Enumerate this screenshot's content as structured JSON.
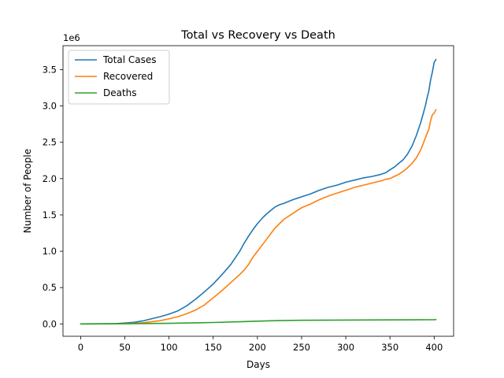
{
  "chart_data": {
    "type": "line",
    "title": "Total vs Recovery vs Death",
    "xlabel": "Days",
    "ylabel": "Number of People",
    "offset_text": "1e6",
    "xlim": [
      -20,
      422
    ],
    "ylim": [
      -170000,
      3830000
    ],
    "x_ticks": [
      0,
      50,
      100,
      150,
      200,
      250,
      300,
      350,
      400
    ],
    "x_tick_labels": [
      "0",
      "50",
      "100",
      "150",
      "200",
      "250",
      "300",
      "350",
      "400"
    ],
    "y_ticks": [
      0,
      500000,
      1000000,
      1500000,
      2000000,
      2500000,
      3000000,
      3500000
    ],
    "y_tick_labels": [
      "0.0",
      "0.5",
      "1.0",
      "1.5",
      "2.0",
      "2.5",
      "3.0",
      "3.5"
    ],
    "grid": false,
    "legend_position": "top-left",
    "series": [
      {
        "name": "Total Cases",
        "color": "#1f77b4",
        "x": [
          0,
          20,
          40,
          50,
          60,
          70,
          80,
          90,
          100,
          110,
          120,
          130,
          140,
          150,
          160,
          170,
          180,
          185,
          190,
          195,
          200,
          205,
          210,
          215,
          220,
          225,
          230,
          240,
          250,
          260,
          270,
          280,
          290,
          300,
          310,
          320,
          330,
          340,
          345,
          350,
          355,
          360,
          365,
          370,
          375,
          380,
          385,
          390,
          392,
          394,
          396,
          398,
          400,
          402
        ],
        "y": [
          0,
          1500,
          5000,
          12000,
          22000,
          40000,
          70000,
          100000,
          135000,
          180000,
          250000,
          340000,
          440000,
          550000,
          680000,
          820000,
          1000000,
          1110000,
          1210000,
          1300000,
          1380000,
          1450000,
          1510000,
          1560000,
          1610000,
          1640000,
          1660000,
          1710000,
          1750000,
          1790000,
          1840000,
          1880000,
          1910000,
          1950000,
          1980000,
          2010000,
          2030000,
          2060000,
          2080000,
          2120000,
          2160000,
          2210000,
          2260000,
          2340000,
          2450000,
          2600000,
          2780000,
          3000000,
          3110000,
          3210000,
          3360000,
          3470000,
          3600000,
          3640000
        ]
      },
      {
        "name": "Recovered",
        "color": "#ff7f0e",
        "x": [
          0,
          20,
          40,
          50,
          60,
          70,
          80,
          90,
          100,
          110,
          120,
          130,
          140,
          150,
          160,
          170,
          180,
          185,
          190,
          195,
          200,
          205,
          210,
          215,
          220,
          225,
          230,
          240,
          250,
          260,
          270,
          280,
          290,
          300,
          310,
          320,
          330,
          340,
          345,
          350,
          355,
          360,
          365,
          370,
          375,
          380,
          385,
          390,
          392,
          394,
          396,
          398,
          400,
          402
        ],
        "y": [
          0,
          300,
          1500,
          4000,
          8000,
          15000,
          30000,
          45000,
          70000,
          100000,
          140000,
          190000,
          260000,
          360000,
          460000,
          570000,
          680000,
          740000,
          820000,
          920000,
          1000000,
          1080000,
          1160000,
          1240000,
          1320000,
          1380000,
          1440000,
          1520000,
          1600000,
          1650000,
          1710000,
          1760000,
          1800000,
          1840000,
          1880000,
          1910000,
          1940000,
          1970000,
          1990000,
          2000000,
          2030000,
          2060000,
          2100000,
          2150000,
          2210000,
          2290000,
          2400000,
          2560000,
          2620000,
          2680000,
          2800000,
          2880000,
          2900000,
          2950000
        ]
      },
      {
        "name": "Deaths",
        "color": "#2ca02c",
        "x": [
          0,
          50,
          100,
          150,
          180,
          200,
          220,
          250,
          300,
          350,
          380,
          400,
          402
        ],
        "y": [
          0,
          2000,
          8000,
          20000,
          30000,
          38000,
          45000,
          50000,
          53000,
          55000,
          57000,
          59000,
          60000
        ]
      }
    ]
  }
}
